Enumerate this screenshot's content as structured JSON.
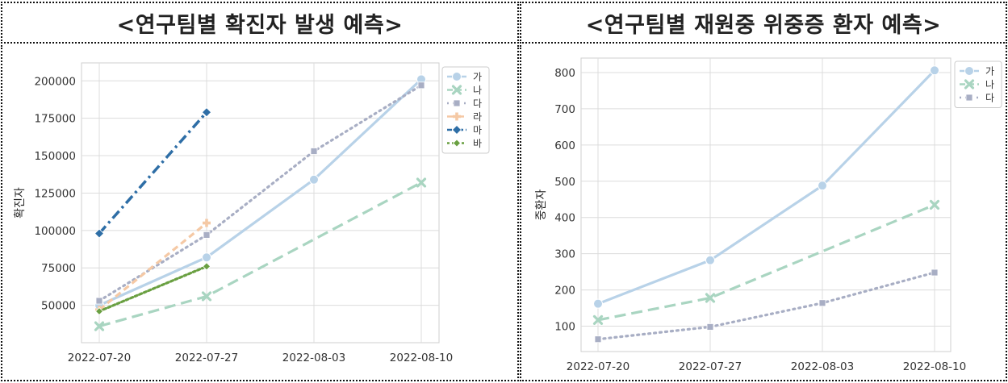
{
  "chart_data": [
    {
      "type": "line",
      "title": "<연구팀별 확진자 발생 예측>",
      "xlabel": "",
      "ylabel": "확진자",
      "x": [
        "2022-07-20",
        "2022-07-27",
        "2022-08-03",
        "2022-08-10"
      ],
      "ylim": [
        25000,
        212000
      ],
      "yticks": [
        50000,
        75000,
        100000,
        125000,
        150000,
        175000,
        200000
      ],
      "grid": true,
      "legend_position": "top-right",
      "series": [
        {
          "name": "가",
          "color": "#b8d2e8",
          "dash": "solid",
          "marker": "circle",
          "values": [
            50000,
            82000,
            134000,
            201000
          ]
        },
        {
          "name": "나",
          "color": "#a9d5c1",
          "dash": "long-dash",
          "marker": "x",
          "values": [
            36000,
            56000,
            null,
            132000
          ]
        },
        {
          "name": "다",
          "color": "#a8aec4",
          "dash": "dot",
          "marker": "square",
          "values": [
            53000,
            97000,
            153000,
            197000
          ]
        },
        {
          "name": "라",
          "color": "#f5c9a5",
          "dash": "dash",
          "marker": "plus",
          "values": [
            47000,
            105000,
            null,
            null
          ]
        },
        {
          "name": "마",
          "color": "#2e6ea6",
          "dash": "dash-dot",
          "marker": "diamond",
          "values": [
            98000,
            179000,
            null,
            null
          ]
        },
        {
          "name": "바",
          "color": "#6aa042",
          "dash": "dot-dense",
          "marker": "diamond-small",
          "values": [
            46000,
            76000,
            null,
            null
          ]
        }
      ]
    },
    {
      "type": "line",
      "title": "<연구팀별 재원중 위중증 환자 예측>",
      "xlabel": "",
      "ylabel": "중환자",
      "x": [
        "2022-07-20",
        "2022-07-27",
        "2022-08-03",
        "2022-08-10"
      ],
      "ylim": [
        30,
        840
      ],
      "yticks": [
        100,
        200,
        300,
        400,
        500,
        600,
        700,
        800
      ],
      "grid": true,
      "legend_position": "top-right",
      "series": [
        {
          "name": "가",
          "color": "#b8d2e8",
          "dash": "solid",
          "marker": "circle",
          "values": [
            162,
            282,
            488,
            806
          ]
        },
        {
          "name": "나",
          "color": "#a9d5c1",
          "dash": "long-dash",
          "marker": "x",
          "values": [
            117,
            178,
            null,
            435
          ]
        },
        {
          "name": "다",
          "color": "#a8aec4",
          "dash": "dot",
          "marker": "square",
          "values": [
            64,
            98,
            164,
            248
          ]
        }
      ]
    }
  ]
}
